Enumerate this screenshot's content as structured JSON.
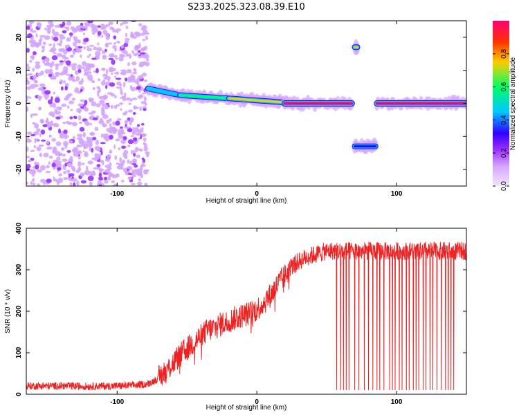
{
  "title": "S233.2025.323.08.39.E10",
  "colors": {
    "line": "#ee2222",
    "background": "#ffffff",
    "axes": "#000000",
    "colormap": [
      "#f2e6ff",
      "#d4a6ff",
      "#9b30ff",
      "#3300ff",
      "#00c8ff",
      "#00ff66",
      "#ffcc00",
      "#ff3300",
      "#ff0077"
    ]
  },
  "chart_data": [
    {
      "type": "heatmap",
      "xlabel": "Height of straight line (km)",
      "ylabel": "Frequency (Hz)",
      "xlim": [
        -165,
        150
      ],
      "ylim": [
        -25,
        25
      ],
      "xticks": [
        -100,
        0,
        100
      ],
      "yticks": [
        -20,
        -10,
        0,
        10,
        20
      ],
      "colorbar": {
        "label": "Normalized spectral amplitude",
        "range": [
          0,
          1
        ],
        "ticks": [
          0.0,
          0.2,
          0.4,
          0.6,
          0.8
        ]
      },
      "features": [
        {
          "region": "noise",
          "x": [
            -165,
            -78
          ],
          "y": [
            -25,
            25
          ],
          "level": 0.25
        },
        {
          "region": "tone",
          "x": [
            -78,
            -55
          ],
          "y": [
            4.5,
            2.5
          ],
          "level": 0.45
        },
        {
          "region": "tone",
          "x": [
            -55,
            -20
          ],
          "y": [
            2.5,
            1.5
          ],
          "level": 0.6
        },
        {
          "region": "tone",
          "x": [
            -20,
            20
          ],
          "y": [
            1.5,
            0.3
          ],
          "level": 0.8
        },
        {
          "region": "tone",
          "x": [
            20,
            68
          ],
          "y": [
            0,
            0
          ],
          "level": 1.0
        },
        {
          "region": "tone",
          "x": [
            70,
            85
          ],
          "y": [
            -13,
            -13
          ],
          "level": 0.4
        },
        {
          "region": "tone",
          "x": [
            70,
            72
          ],
          "y": [
            17,
            17
          ],
          "level": 0.8
        },
        {
          "region": "tone",
          "x": [
            86,
            150
          ],
          "y": [
            0,
            0
          ],
          "level": 1.0
        }
      ]
    },
    {
      "type": "line",
      "xlabel": "Height of straight line (km)",
      "ylabel": "SNR (10 * v/v)",
      "xlim": [
        -165,
        150
      ],
      "ylim": [
        0,
        400
      ],
      "xticks": [
        -100,
        0,
        100
      ],
      "yticks": [
        0,
        100,
        200,
        300,
        400
      ],
      "series": [
        {
          "x": [
            -165,
            -140,
            -120,
            -100,
            -85,
            -78,
            -72,
            -65,
            -60,
            -55,
            -50,
            -45,
            -40,
            -35,
            -30,
            -25,
            -20,
            -15,
            -10,
            -5,
            0,
            5,
            10,
            15,
            20,
            25,
            30,
            35,
            40,
            45,
            50,
            55,
            60,
            70,
            80,
            90,
            100,
            110,
            120,
            130,
            140,
            150
          ],
          "values": [
            20,
            20,
            19,
            20,
            22,
            25,
            35,
            55,
            75,
            95,
            110,
            125,
            140,
            155,
            160,
            170,
            175,
            185,
            190,
            195,
            205,
            220,
            240,
            265,
            285,
            310,
            320,
            330,
            335,
            340,
            345,
            345,
            345,
            345,
            345,
            345,
            345,
            345,
            345,
            345,
            345,
            345
          ],
          "dropouts_x": [
            57,
            60,
            62,
            64,
            66,
            70,
            73,
            77,
            80,
            83,
            86,
            88,
            91,
            95,
            97,
            99,
            102,
            104,
            107,
            109,
            112,
            114,
            116,
            119,
            121,
            124,
            126,
            129,
            132,
            135,
            137,
            139,
            141
          ],
          "dropout_value": 10
        }
      ]
    }
  ]
}
